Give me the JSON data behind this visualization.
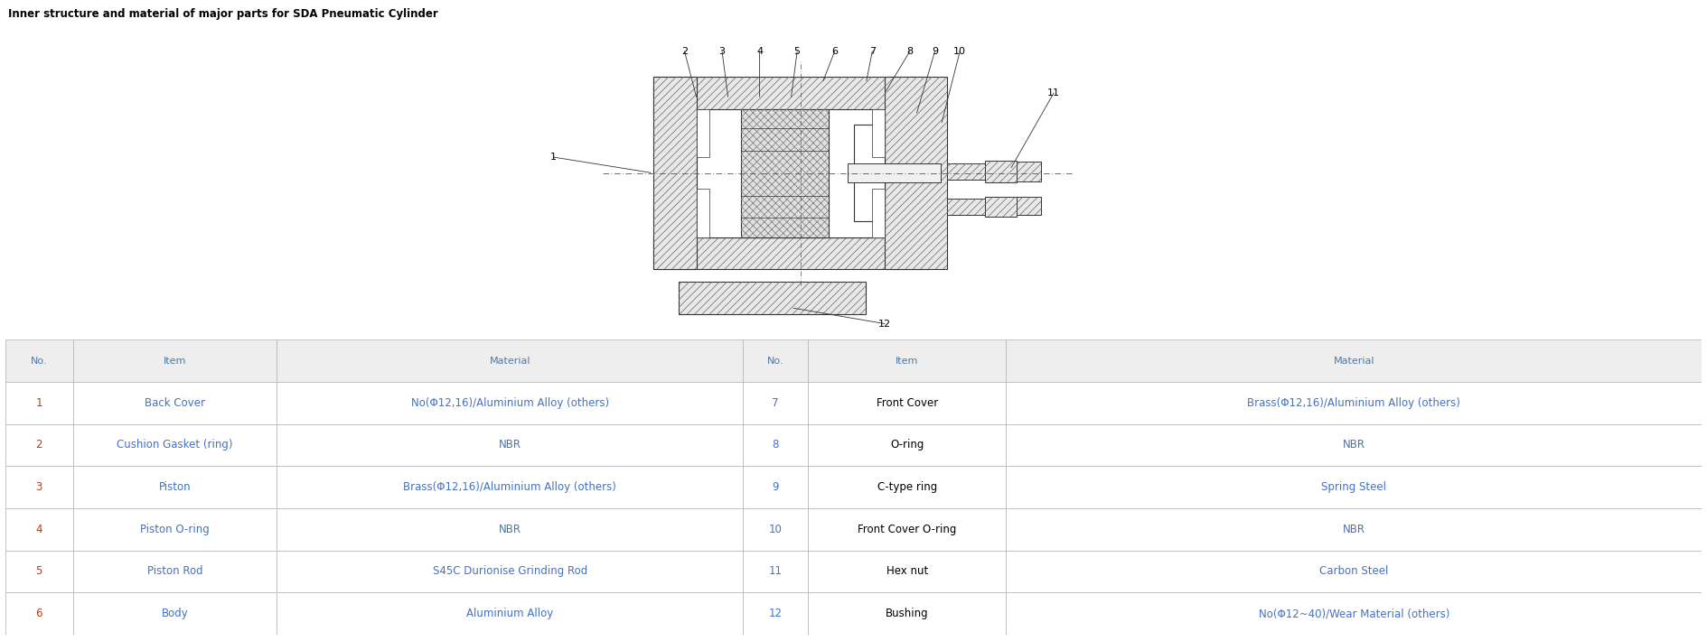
{
  "title": "Inner structure and material of major parts for SDA Pneumatic Cylinder",
  "title_color": "#000000",
  "title_fontsize": 8.5,
  "bg_color": "#ffffff",
  "header_bg": "#eeeeee",
  "header_text_color": "#4a7aaa",
  "border_color": "#bbbbbb",
  "headers": [
    "No.",
    "Item",
    "Material",
    "No.",
    "Item",
    "Material"
  ],
  "rows": [
    [
      "1",
      "Back Cover",
      "No(Φ12,16)/Aluminium Alloy (others)",
      "7",
      "Front Cover",
      "Brass(Φ12,16)/Aluminium Alloy (others)"
    ],
    [
      "2",
      "Cushion Gasket (ring)",
      "NBR",
      "8",
      "O-ring",
      "NBR"
    ],
    [
      "3",
      "Piston",
      "Brass(Φ12,16)/Aluminium Alloy (others)",
      "9",
      "C-type ring",
      "Spring Steel"
    ],
    [
      "4",
      "Piston O-ring",
      "NBR",
      "10",
      "Front Cover O-ring",
      "NBR"
    ],
    [
      "5",
      "Piston Rod",
      "S45C Durionise Grinding Rod",
      "11",
      "Hex nut",
      "Carbon Steel"
    ],
    [
      "6",
      "Body",
      "Aluminium Alloy",
      "12",
      "Bushing",
      "No(Φ12~40)/Wear Material (others)"
    ]
  ],
  "figure_width": 18.89,
  "figure_height": 7.1
}
